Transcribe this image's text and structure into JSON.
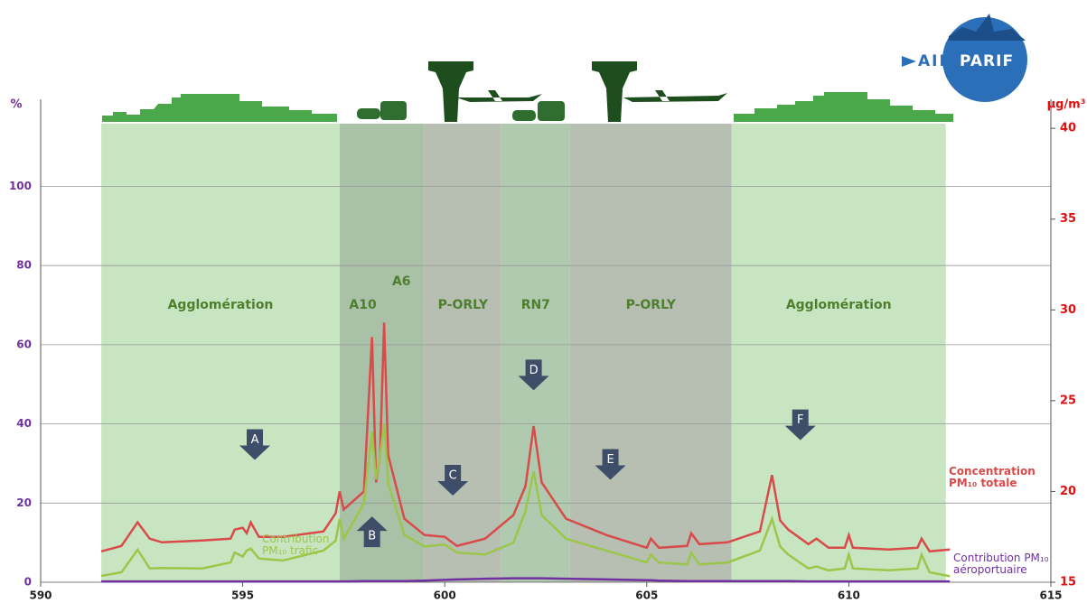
{
  "chart_data": {
    "type": "line",
    "y_axis_label": "%",
    "y2_axis_label": "µg/m³",
    "logo": {
      "left": "AIR",
      "right": "PARIF"
    },
    "xlim": [
      590,
      615
    ],
    "xticks": [
      590,
      595,
      600,
      605,
      610,
      615
    ],
    "ylim": [
      0,
      122
    ],
    "yticks": [
      0,
      20,
      40,
      60,
      80,
      100
    ],
    "y2lim": [
      15,
      41.6
    ],
    "y2ticks": [
      15,
      20,
      25,
      30,
      35,
      40
    ],
    "grid": true,
    "zones": [
      {
        "labels": [
          "Agglomération"
        ],
        "start": 591.5,
        "end": 597.4,
        "color": "#c8e5c1"
      },
      {
        "labels": [
          "A10",
          "A6"
        ],
        "start": 597.4,
        "end": 599.5,
        "color": "#a9c1a7"
      },
      {
        "labels": [
          "P-ORLY"
        ],
        "start": 599.5,
        "end": 601.4,
        "color": "#b6bfb2"
      },
      {
        "labels": [
          "RN7"
        ],
        "start": 601.4,
        "end": 603.1,
        "color": "#afcaae"
      },
      {
        "labels": [
          "P-ORLY"
        ],
        "start": 603.1,
        "end": 607.1,
        "color": "#b6bfb2"
      },
      {
        "labels": [
          "Agglomération"
        ],
        "start": 607.1,
        "end": 612.4,
        "color": "#c8e5c1"
      }
    ],
    "markers": [
      {
        "label": "A",
        "x": 595.3,
        "y": 35,
        "direction": "down"
      },
      {
        "label": "B",
        "x": 598.2,
        "y": 12.5,
        "direction": "up"
      },
      {
        "label": "C",
        "x": 600.2,
        "y": 26,
        "direction": "down"
      },
      {
        "label": "D",
        "x": 602.2,
        "y": 52.6,
        "direction": "down"
      },
      {
        "label": "E",
        "x": 604.1,
        "y": 30,
        "direction": "down"
      },
      {
        "label": "F",
        "x": 608.8,
        "y": 40,
        "direction": "down"
      }
    ],
    "x": [
      591.5,
      592.0,
      592.4,
      592.7,
      593.0,
      594.0,
      594.7,
      594.8,
      595.0,
      595.1,
      595.2,
      595.4,
      596.0,
      597.0,
      597.3,
      597.4,
      597.5,
      598.0,
      598.2,
      598.3,
      598.4,
      598.5,
      598.6,
      599.0,
      599.5,
      600.0,
      600.3,
      601.0,
      601.7,
      602.0,
      602.2,
      602.4,
      603.0,
      604.0,
      605.0,
      605.1,
      605.3,
      606.0,
      606.1,
      606.3,
      607.0,
      607.8,
      608.1,
      608.3,
      608.5,
      609.0,
      609.2,
      609.5,
      609.9,
      610.0,
      610.1,
      611.0,
      611.7,
      611.8,
      612.0,
      612.5
    ],
    "series": [
      {
        "name": "Concentration PM₁₀ totale",
        "color": "#d94a4a",
        "axis": "y2",
        "values": [
          16.7,
          17.0,
          18.3,
          17.4,
          17.2,
          17.3,
          17.4,
          17.9,
          18.0,
          17.7,
          18.3,
          17.5,
          17.5,
          17.8,
          18.8,
          20.0,
          19.0,
          20.0,
          28.5,
          20.5,
          22.0,
          29.3,
          22.0,
          18.5,
          17.6,
          17.5,
          17.0,
          17.4,
          18.7,
          20.3,
          23.6,
          20.5,
          18.5,
          17.6,
          16.9,
          17.4,
          16.9,
          17.0,
          17.7,
          17.1,
          17.2,
          17.8,
          20.9,
          18.4,
          17.9,
          17.1,
          17.4,
          16.9,
          16.9,
          17.6,
          16.9,
          16.8,
          16.9,
          17.4,
          16.7,
          16.8
        ]
      },
      {
        "name": "Contribution PM₁₀ trafic",
        "color": "#9cc64a",
        "axis": "y",
        "values": [
          1.6,
          2.5,
          8.2,
          3.5,
          3.6,
          3.5,
          5.0,
          7.5,
          6.5,
          8.0,
          8.5,
          6.0,
          5.5,
          8.0,
          10.5,
          16,
          11,
          20,
          38,
          26,
          32,
          40,
          25,
          12,
          9,
          9.5,
          7.5,
          7,
          10,
          18,
          28,
          17,
          11,
          8,
          5,
          7,
          5,
          4.5,
          7.5,
          4.5,
          5,
          8,
          16,
          9,
          7,
          3.5,
          4,
          3,
          3.5,
          7,
          3.5,
          3,
          3.5,
          7,
          2.5,
          1.5
        ]
      },
      {
        "name": "Contribution PM₁₀ aéroportuaire",
        "color": "#7030a0",
        "axis": "y",
        "values": [
          0.2,
          0.2,
          0.2,
          0.2,
          0.2,
          0.2,
          0.2,
          0.2,
          0.2,
          0.2,
          0.2,
          0.2,
          0.2,
          0.2,
          0.2,
          0.2,
          0.2,
          0.3,
          0.3,
          0.3,
          0.3,
          0.3,
          0.3,
          0.3,
          0.4,
          0.6,
          0.7,
          0.9,
          1.0,
          1.0,
          1.0,
          1.0,
          0.9,
          0.7,
          0.5,
          0.5,
          0.4,
          0.3,
          0.3,
          0.3,
          0.3,
          0.3,
          0.3,
          0.3,
          0.3,
          0.2,
          0.2,
          0.2,
          0.2,
          0.2,
          0.2,
          0.2,
          0.2,
          0.2,
          0.2,
          0.2
        ]
      }
    ]
  }
}
